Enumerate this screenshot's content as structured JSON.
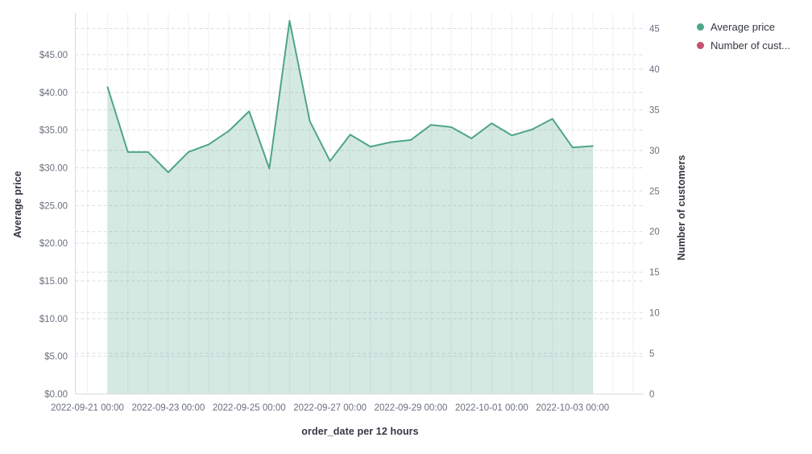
{
  "chart_data": {
    "type": "area",
    "title": "",
    "xlabel": "order_date per 12 hours",
    "ylabel_left": "Average price",
    "ylabel_right": "Number of customers",
    "legend_position": "top-right",
    "grid": true,
    "legend": [
      {
        "label": "Average price",
        "color": "#4fa588"
      },
      {
        "label": "Number of cust...",
        "color": "#c45072"
      }
    ],
    "x_tick_labels": [
      "2022-09-21 00:00",
      "2022-09-23 00:00",
      "2022-09-25 00:00",
      "2022-09-27 00:00",
      "2022-09-29 00:00",
      "2022-10-01 00:00",
      "2022-10-03 00:00"
    ],
    "y_left_tick_labels": [
      "$0.00",
      "$5.00",
      "$10.00",
      "$15.00",
      "$20.00",
      "$25.00",
      "$30.00",
      "$35.00",
      "$40.00",
      "$45.00"
    ],
    "y_left_tick_values": [
      0,
      5,
      10,
      15,
      20,
      25,
      30,
      35,
      40,
      45
    ],
    "y_right_tick_labels": [
      "0",
      "5",
      "10",
      "15",
      "20",
      "25",
      "30",
      "35",
      "40",
      "45"
    ],
    "y_right_tick_values": [
      0,
      5,
      10,
      15,
      20,
      25,
      30,
      35,
      40,
      45
    ],
    "y_left_axis_range": [
      0,
      50.6
    ],
    "y_right_axis_range": [
      0,
      47.2
    ],
    "series": [
      {
        "name": "Average price",
        "type": "area",
        "axis": "left",
        "color": "#4fa588",
        "fill_opacity": 0.24,
        "x": [
          "2022-09-21 12:00",
          "2022-09-22 00:00",
          "2022-09-22 12:00",
          "2022-09-23 00:00",
          "2022-09-23 12:00",
          "2022-09-24 00:00",
          "2022-09-24 12:00",
          "2022-09-25 00:00",
          "2022-09-25 12:00",
          "2022-09-26 00:00",
          "2022-09-26 12:00",
          "2022-09-27 00:00",
          "2022-09-27 12:00",
          "2022-09-28 00:00",
          "2022-09-28 12:00",
          "2022-09-29 00:00",
          "2022-09-29 12:00",
          "2022-09-30 00:00",
          "2022-09-30 12:00",
          "2022-10-01 00:00",
          "2022-10-01 12:00",
          "2022-10-02 00:00",
          "2022-10-02 12:00",
          "2022-10-03 00:00",
          "2022-10-03 12:00"
        ],
        "values": [
          40.7,
          32.1,
          32.1,
          29.4,
          32.1,
          33.1,
          34.9,
          37.5,
          29.9,
          49.5,
          36.2,
          30.9,
          34.4,
          32.8,
          33.4,
          33.7,
          35.7,
          35.4,
          33.9,
          35.9,
          34.3,
          35.1,
          36.5,
          32.7,
          32.9
        ]
      },
      {
        "name": "Number of customers",
        "type": "hidden",
        "axis": "right",
        "color": "#c45072",
        "values": []
      }
    ]
  },
  "palette": {
    "background": "#ffffff",
    "grid_vertical": "#eef0f4",
    "grid_dashed": "#d9dde4",
    "axis_line": "#d6dae2",
    "tick_text": "#69707d",
    "title_text": "#343741"
  }
}
